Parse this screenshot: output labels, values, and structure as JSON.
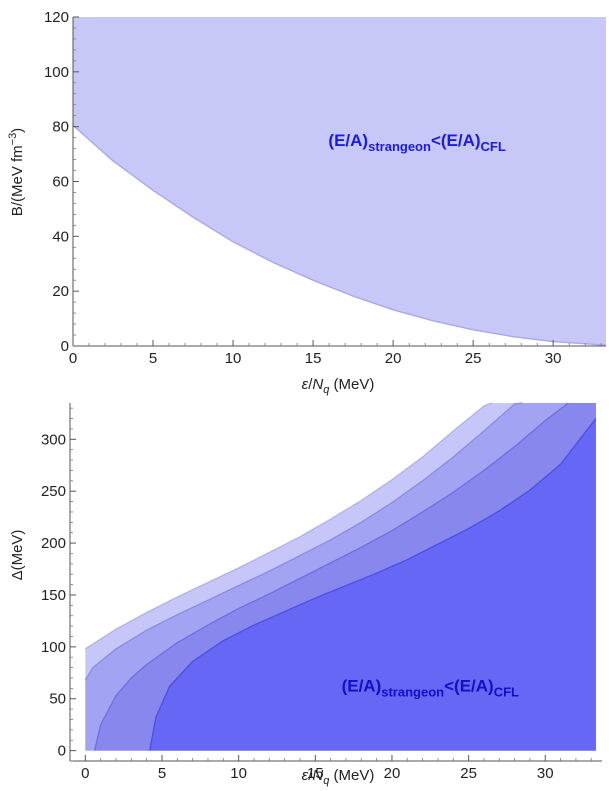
{
  "chart_data": [
    {
      "type": "area",
      "xlabel": {
        "symbol": "ε",
        "slash": "/",
        "N": "N",
        "sub": "q",
        "unit": " (MeV)"
      },
      "ylabel": {
        "main": "B/(MeV fm",
        "sup": "−3",
        "close": ")"
      },
      "xlim": [
        0,
        33.3
      ],
      "ylim": [
        0,
        120
      ],
      "xticks": [
        0,
        5,
        10,
        15,
        20,
        25,
        30
      ],
      "yticks": [
        0,
        20,
        40,
        60,
        80,
        100,
        120
      ],
      "boundary": {
        "x": [
          0,
          2.5,
          5,
          7.5,
          10,
          12.5,
          15,
          17.5,
          20,
          22.5,
          25,
          27.5,
          30,
          33.3
        ],
        "y": [
          80.5,
          67.5,
          56.8,
          47.0,
          38.0,
          30.5,
          24.0,
          18.2,
          13.2,
          9.2,
          5.9,
          3.4,
          1.6,
          0.3
        ]
      },
      "fill_color": "#c8c8f8",
      "edge_color": "#a8a8ea",
      "annotation": {
        "main": "(E/A)",
        "sub1": "strangeon",
        "lt": "<",
        "main2": "(E/A)",
        "sub2": "CFL",
        "x": 21.5,
        "y": 73,
        "color": "#1a1ae6"
      }
    },
    {
      "type": "area",
      "xlabel": {
        "symbol": "ε",
        "slash": "/",
        "N": "N",
        "sub": "q",
        "unit": " (MeV)"
      },
      "ylabel": {
        "main": "Δ(MeV)"
      },
      "xlim": [
        -1,
        33.7
      ],
      "ylim": [
        -10,
        335
      ],
      "xticks": [
        0,
        5,
        10,
        15,
        20,
        25,
        30
      ],
      "yticks": [
        0,
        50,
        100,
        150,
        200,
        250,
        300
      ],
      "series": [
        {
          "x": [
            0,
            2,
            4,
            6,
            8,
            10,
            12,
            14,
            16,
            18,
            20,
            22,
            24,
            26,
            26.5
          ],
          "y": [
            98,
            117,
            133,
            148,
            162,
            176,
            191,
            206,
            223,
            241,
            261,
            283,
            308,
            332,
            338
          ],
          "fill": "#c6c6f8",
          "edge": "#b0b0ef"
        },
        {
          "x": [
            0,
            0.5,
            2,
            4,
            6,
            8,
            10,
            12,
            14,
            16,
            18,
            20,
            22,
            24,
            26,
            28,
            28.5
          ],
          "y": [
            68,
            80,
            98,
            116,
            131,
            145,
            159,
            173,
            188,
            203,
            220,
            239,
            260,
            283,
            308,
            334,
            340
          ],
          "fill": "#a3a3f3",
          "edge": "#8a8ae8"
        },
        {
          "x": [
            0.6,
            1,
            2,
            3,
            4,
            6,
            8,
            10,
            12,
            14,
            16,
            18,
            20,
            22,
            24,
            26,
            28,
            30,
            31.5
          ],
          "y": [
            0,
            25,
            53,
            70,
            83,
            104,
            121,
            137,
            151,
            166,
            181,
            196,
            212,
            230,
            249,
            270,
            293,
            318,
            338
          ],
          "fill": "#8787ee",
          "edge": "#6e6ee3"
        },
        {
          "x": [
            4.2,
            4.6,
            5.5,
            7,
            9,
            11,
            13,
            15,
            17,
            19,
            21,
            23,
            25,
            27,
            29,
            31,
            33.3
          ],
          "y": [
            0,
            32,
            62,
            86,
            106,
            121,
            134,
            147,
            159,
            171,
            184,
            199,
            214,
            231,
            251,
            276,
            320
          ],
          "fill": "#6767f5",
          "edge": "#4d4de8"
        }
      ],
      "annotation": {
        "main": "(E/A)",
        "sub1": "strangeon",
        "lt": "<",
        "main2": "(E/A)",
        "sub2": "CFL",
        "x": 22.5,
        "y": 57,
        "color": "#1010c8"
      }
    }
  ]
}
